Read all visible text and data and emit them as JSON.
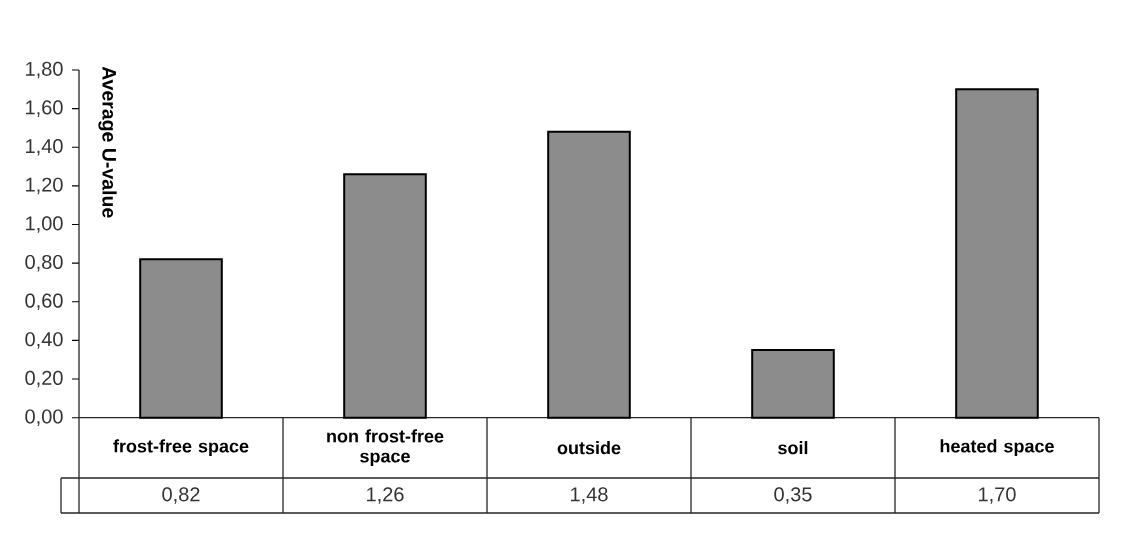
{
  "chart_data": {
    "type": "bar",
    "ylabel": "Average U-value",
    "categories": [
      "frost-free space",
      "non frost-free space",
      "outside",
      "soil",
      "heated space"
    ],
    "values": [
      0.82,
      1.26,
      1.48,
      0.35,
      1.7
    ],
    "color": "#8c8c8c",
    "value_labels": [
      "0,82",
      "1,26",
      "1,48",
      "0,35",
      "1,70"
    ],
    "ylim": [
      0,
      1.8
    ],
    "yticks": [
      {
        "value": 0,
        "label": "0,00"
      },
      {
        "value": 0.2,
        "label": "0,20"
      },
      {
        "value": 0.4,
        "label": "0,40"
      },
      {
        "value": 0.6,
        "label": "0,60"
      },
      {
        "value": 0.8,
        "label": "0,80"
      },
      {
        "value": 1.0,
        "label": "1,00"
      },
      {
        "value": 1.2,
        "label": "1,20"
      },
      {
        "value": 1.4,
        "label": "1,40"
      },
      {
        "value": 1.6,
        "label": "1,60"
      },
      {
        "value": 1.8,
        "label": "1,80"
      }
    ]
  }
}
